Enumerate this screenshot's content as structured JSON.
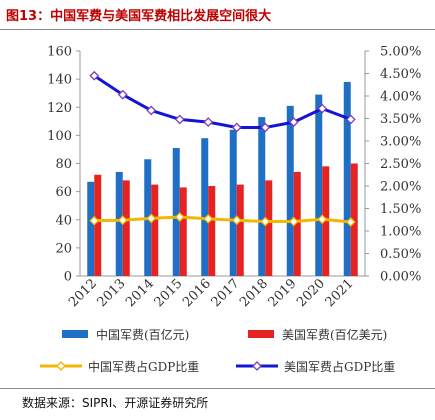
{
  "figure": {
    "title": "图13：中国军费与美国军费相比发展空间很大",
    "source": "数据来源：SIPRI、开源证券研究所"
  },
  "colors": {
    "china_bar": "#1f6fc5",
    "us_bar": "#e52421",
    "china_line": "#f2b705",
    "us_line": "#1414d8",
    "title": "#c00000"
  },
  "chart_data": {
    "type": "bar",
    "categories": [
      "2012",
      "2013",
      "2014",
      "2015",
      "2016",
      "2017",
      "2018",
      "2019",
      "2020",
      "2021"
    ],
    "series": [
      {
        "name": "中国军费(百亿元)",
        "kind": "bar",
        "axis": "left",
        "values": [
          67,
          74,
          83,
          91,
          98,
          104,
          113,
          121,
          129,
          138
        ]
      },
      {
        "name": "美国军费(百亿美元)",
        "kind": "bar",
        "axis": "left",
        "values": [
          72,
          68,
          65,
          63,
          64,
          65,
          68,
          74,
          78,
          80
        ]
      },
      {
        "name": "中国军费占GDP比重",
        "kind": "line",
        "axis": "right",
        "values": [
          1.23,
          1.24,
          1.28,
          1.31,
          1.27,
          1.24,
          1.21,
          1.21,
          1.26,
          1.2
        ]
      },
      {
        "name": "美国军费占GDP比重",
        "kind": "line",
        "axis": "right",
        "values": [
          4.45,
          4.03,
          3.68,
          3.48,
          3.42,
          3.3,
          3.3,
          3.42,
          3.72,
          3.48
        ]
      }
    ],
    "y_left": {
      "lim": [
        0,
        160
      ],
      "ticks": [
        "0",
        "20",
        "40",
        "60",
        "80",
        "100",
        "120",
        "140",
        "160"
      ]
    },
    "y_right": {
      "lim": [
        0,
        5
      ],
      "ticks": [
        "0.00%",
        "0.50%",
        "1.00%",
        "1.50%",
        "2.00%",
        "2.50%",
        "3.00%",
        "3.50%",
        "4.00%",
        "4.50%",
        "5.00%"
      ]
    },
    "grid": false,
    "legend_position": "bottom"
  }
}
